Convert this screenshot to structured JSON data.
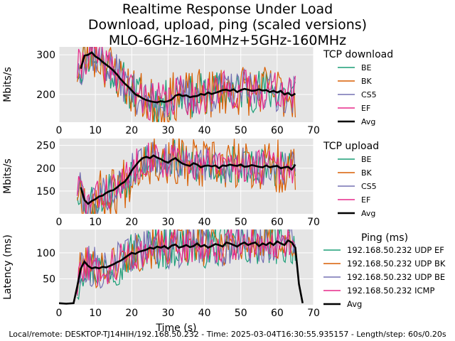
{
  "title_lines": [
    "Realtime Response Under Load",
    "Download, upload, ping (scaled versions)",
    "MLO-6GHz-160MHz+5GHz-160MHz"
  ],
  "footer": "Local/remote: DESKTOP-TJ14HIH/192.168.50.232 - Time: 2025-03-04T16:30:55.935157 - Length/step: 60s/0.20s",
  "colors": {
    "BE": "#1b9e77",
    "BK": "#d95f02",
    "CS5": "#7570b3",
    "EF": "#e7298a",
    "Avg": "#000000",
    "plot_bg": "#e5e5e5",
    "grid": "#ffffff"
  },
  "chart_data": [
    {
      "type": "line",
      "title": "TCP download",
      "xlabel": "",
      "ylabel": "Mbits/s",
      "xlim": [
        0,
        70
      ],
      "ylim": [
        130,
        320
      ],
      "xticks": [
        0,
        10,
        20,
        30,
        40,
        50,
        60,
        70
      ],
      "yticks": [
        200,
        300
      ],
      "legend_title": "TCP download",
      "legend": [
        "BE",
        "BK",
        "CS5",
        "EF",
        "Avg"
      ],
      "noisy_series": [
        {
          "name": "BE",
          "x_start": 5,
          "x_end": 65,
          "amplitude": 55,
          "seed": 11
        },
        {
          "name": "BK",
          "x_start": 5,
          "x_end": 65,
          "amplitude": 65,
          "seed": 23
        },
        {
          "name": "CS5",
          "x_start": 5,
          "x_end": 65,
          "amplitude": 50,
          "seed": 37
        },
        {
          "name": "EF",
          "x_start": 5,
          "x_end": 65,
          "amplitude": 50,
          "seed": 41
        }
      ],
      "avg": {
        "name": "Avg",
        "x": [
          6,
          7,
          8,
          9,
          10,
          11,
          12,
          13,
          14,
          15,
          16,
          17,
          18,
          19,
          20,
          21,
          22,
          23,
          24,
          25,
          26,
          27,
          28,
          29,
          30,
          31,
          32,
          33,
          34,
          35,
          36,
          37,
          38,
          39,
          40,
          41,
          42,
          43,
          44,
          45,
          46,
          47,
          48,
          49,
          50,
          51,
          52,
          53,
          54,
          55,
          56,
          57,
          58,
          59,
          60,
          61,
          62,
          63,
          64,
          65
        ],
        "y": [
          265,
          298,
          300,
          306,
          296,
          290,
          282,
          275,
          268,
          260,
          250,
          238,
          228,
          220,
          210,
          200,
          196,
          190,
          186,
          183,
          181,
          180,
          183,
          181,
          183,
          187,
          197,
          200,
          196,
          198,
          193,
          195,
          196,
          201,
          199,
          205,
          201,
          204,
          207,
          211,
          212,
          209,
          213,
          206,
          211,
          214,
          212,
          209,
          210,
          213,
          210,
          211,
          206,
          209,
          205,
          209,
          200,
          204,
          197,
          202
        ]
      }
    },
    {
      "type": "line",
      "title": "TCP upload",
      "xlabel": "",
      "ylabel": "Mbits/s",
      "xlim": [
        0,
        70
      ],
      "ylim": [
        100,
        265
      ],
      "xticks": [
        0,
        10,
        20,
        30,
        40,
        50,
        60,
        70
      ],
      "yticks": [
        150,
        200,
        250
      ],
      "legend_title": "TCP upload",
      "legend": [
        "BE",
        "BK",
        "CS5",
        "EF",
        "Avg"
      ],
      "noisy_series": [
        {
          "name": "BE",
          "x_start": 5,
          "x_end": 65,
          "amplitude": 45,
          "seed": 53
        },
        {
          "name": "BK",
          "x_start": 5,
          "x_end": 65,
          "amplitude": 60,
          "seed": 67
        },
        {
          "name": "CS5",
          "x_start": 5,
          "x_end": 65,
          "amplitude": 40,
          "seed": 79
        },
        {
          "name": "EF",
          "x_start": 5,
          "x_end": 65,
          "amplitude": 40,
          "seed": 83
        }
      ],
      "avg": {
        "name": "Avg",
        "x": [
          6,
          7,
          8,
          9,
          10,
          11,
          12,
          13,
          14,
          15,
          16,
          17,
          18,
          19,
          20,
          21,
          22,
          23,
          24,
          25,
          26,
          27,
          28,
          29,
          30,
          31,
          32,
          33,
          34,
          35,
          36,
          37,
          38,
          39,
          40,
          41,
          42,
          43,
          44,
          45,
          46,
          47,
          48,
          49,
          50,
          51,
          52,
          53,
          54,
          55,
          56,
          57,
          58,
          59,
          60,
          61,
          62,
          63,
          64,
          65
        ],
        "y": [
          158,
          130,
          122,
          128,
          132,
          138,
          140,
          146,
          150,
          152,
          158,
          165,
          170,
          180,
          195,
          205,
          215,
          222,
          225,
          222,
          228,
          223,
          220,
          215,
          212,
          218,
          222,
          215,
          210,
          207,
          205,
          211,
          208,
          202,
          205,
          206,
          204,
          206,
          200,
          206,
          205,
          208,
          206,
          205,
          208,
          203,
          204,
          207,
          205,
          203,
          202,
          206,
          202,
          204,
          205,
          200,
          202,
          203,
          197,
          208
        ]
      }
    },
    {
      "type": "line",
      "title": "Ping (ms)",
      "xlabel": "Time (s)",
      "ylabel": "Latency (ms)",
      "xlim": [
        0,
        70
      ],
      "ylim": [
        0,
        145
      ],
      "xticks": [
        0,
        10,
        20,
        30,
        40,
        50,
        60,
        70
      ],
      "yticks": [
        50,
        100
      ],
      "legend_title": "Ping (ms)",
      "legend": [
        "192.168.50.232 UDP EF",
        "192.168.50.232 UDP BK",
        "192.168.50.232 UDP BE",
        "192.168.50.232 ICMP",
        "Avg"
      ],
      "legend_color_keys": [
        "BE",
        "BK",
        "CS5",
        "EF",
        "Avg"
      ],
      "noisy_series": [
        {
          "name": "192.168.50.232 UDP EF",
          "x_start": 5,
          "x_end": 65,
          "amplitude": 45,
          "seed": 97
        },
        {
          "name": "192.168.50.232 UDP BK",
          "x_start": 5,
          "x_end": 65,
          "amplitude": 40,
          "seed": 101
        },
        {
          "name": "192.168.50.232 UDP BE",
          "x_start": 5,
          "x_end": 65,
          "amplitude": 40,
          "seed": 113
        },
        {
          "name": "192.168.50.232 ICMP",
          "x_start": 5,
          "x_end": 65,
          "amplitude": 35,
          "seed": 127
        }
      ],
      "avg": {
        "name": "Avg",
        "x": [
          0,
          2,
          4,
          5,
          6,
          7,
          8,
          9,
          10,
          11,
          12,
          13,
          14,
          15,
          16,
          17,
          18,
          19,
          20,
          21,
          22,
          23,
          24,
          25,
          26,
          27,
          28,
          29,
          30,
          31,
          32,
          33,
          34,
          35,
          36,
          37,
          38,
          39,
          40,
          41,
          42,
          43,
          44,
          45,
          46,
          47,
          48,
          49,
          50,
          51,
          52,
          53,
          54,
          55,
          56,
          57,
          58,
          59,
          60,
          61,
          62,
          63,
          64,
          65,
          66,
          67
        ],
        "y": [
          3,
          2,
          3,
          35,
          70,
          83,
          75,
          70,
          72,
          70,
          73,
          72,
          75,
          78,
          82,
          85,
          90,
          95,
          100,
          98,
          102,
          104,
          106,
          110,
          108,
          112,
          110,
          113,
          108,
          114,
          116,
          110,
          112,
          115,
          111,
          113,
          118,
          112,
          115,
          110,
          113,
          117,
          115,
          112,
          120,
          118,
          115,
          112,
          117,
          120,
          115,
          118,
          120,
          113,
          118,
          115,
          120,
          115,
          122,
          118,
          115,
          124,
          120,
          110,
          40,
          3
        ]
      }
    }
  ]
}
